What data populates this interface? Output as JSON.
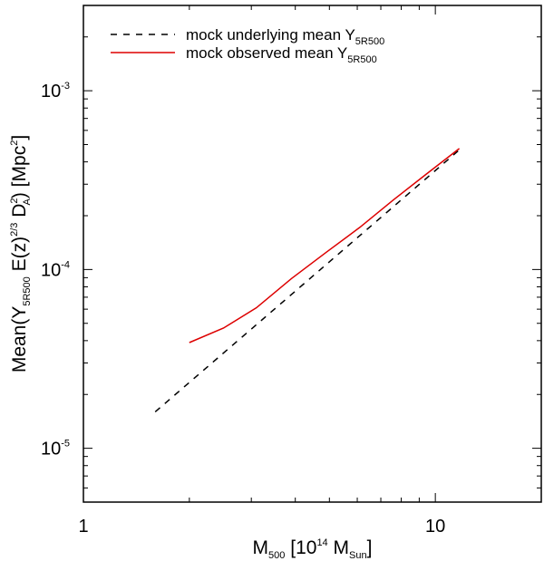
{
  "chart_data": {
    "type": "line",
    "x_scale": "log",
    "y_scale": "log",
    "xlim": [
      1,
      20
    ],
    "ylim": [
      5e-06,
      0.003
    ],
    "x_ticks": [
      {
        "value": 1,
        "label": "1"
      },
      {
        "value": 10,
        "label": "10"
      }
    ],
    "y_ticks": [
      {
        "value": 1e-05,
        "base": "10",
        "exp": "-5"
      },
      {
        "value": 0.0001,
        "base": "10",
        "exp": "-4"
      },
      {
        "value": 0.001,
        "base": "10",
        "exp": "-3"
      }
    ],
    "xlabel": {
      "main": "M",
      "sub1": "500",
      "mid": " [10",
      "sup": "14",
      "mid2": " M",
      "sub2": "Sun",
      "end": "]"
    },
    "ylabel": {
      "main": "Mean(Y",
      "sub1": "5R500",
      "mid": " E(z)",
      "sup1": "2/3",
      "mid2": " D",
      "sup2": "2",
      "sub2": "A",
      "mid3": ") [Mpc",
      "sup3": "2",
      "end": "]"
    },
    "legend_position": "top-left",
    "series": [
      {
        "name": "mock underlying mean",
        "legend_main": "mock underlying mean Y",
        "legend_sub": "5R500",
        "color": "#000000",
        "dash": "dashed",
        "x": [
          1.6,
          11.6
        ],
        "y": [
          1.6e-05,
          0.00046
        ]
      },
      {
        "name": "mock observed mean",
        "legend_main": "mock observed mean Y",
        "legend_sub": "5R500",
        "color": "#dd0000",
        "dash": "solid",
        "x": [
          2.0,
          2.5,
          3.1,
          3.9,
          4.9,
          6.1,
          7.6,
          9.4,
          11.7
        ],
        "y": [
          3.9e-05,
          4.7e-05,
          6.1e-05,
          8.9e-05,
          0.000125,
          0.000172,
          0.000245,
          0.00034,
          0.000475
        ]
      }
    ]
  }
}
